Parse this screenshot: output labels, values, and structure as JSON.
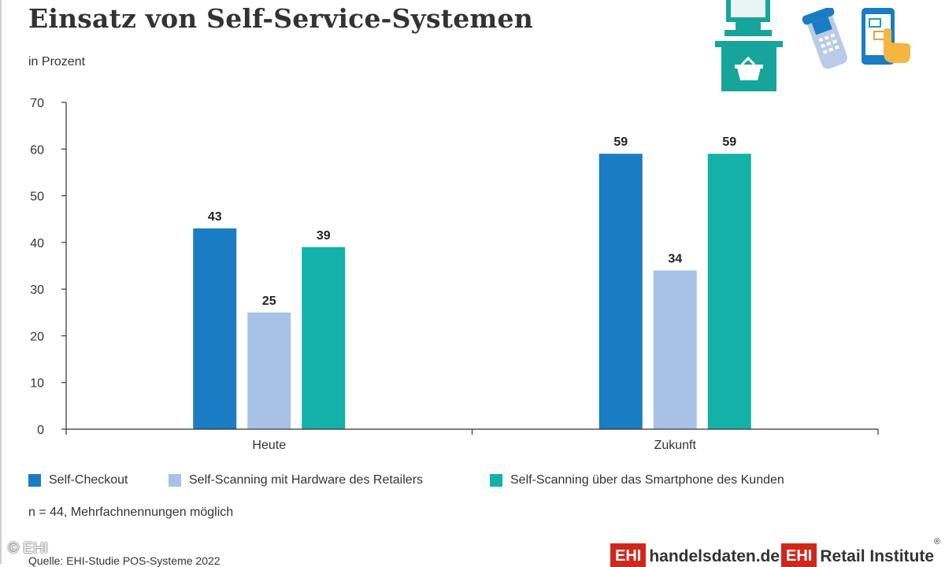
{
  "title": "Einsatz von Self-Service-Systemen",
  "subtitle": "in Prozent",
  "note": "n = 44, Mehrfachnennungen möglich",
  "source": "Quelle: EHI-Studie POS-Systeme 2022",
  "copyright": "© EHI",
  "logos": {
    "handelsdaten": {
      "badge": "EHI",
      "text": "handelsdaten.de"
    },
    "retail": {
      "badge": "EHI",
      "text": "Retail Institute",
      "mark": "®"
    }
  },
  "icons": [
    "self-checkout-terminal-icon",
    "handheld-scanner-icon",
    "smartphone-touch-icon"
  ],
  "colors": {
    "self_checkout": "#1a7dc3",
    "self_scanning_hw": "#a8c2e6",
    "self_scanning_phone": "#13b1a8",
    "logo_red": "#d1271b",
    "icon_teal": "#17a59b"
  },
  "chart_data": {
    "type": "bar",
    "categories": [
      "Heute",
      "Zukunft"
    ],
    "series": [
      {
        "name": "Self-Checkout",
        "values": [
          43,
          59
        ],
        "color": "#1a7dc3"
      },
      {
        "name": "Self-Scanning mit Hardware des Retailers",
        "values": [
          25,
          34
        ],
        "color": "#a8c2e6"
      },
      {
        "name": "Self-Scanning über das Smartphone des Kunden",
        "values": [
          39,
          59
        ],
        "color": "#13b1a8"
      }
    ],
    "ylim": [
      0,
      70
    ],
    "yticks": [
      0,
      10,
      20,
      30,
      40,
      50,
      60,
      70
    ],
    "grid": false,
    "legend": "bottom",
    "data_labels": true
  }
}
